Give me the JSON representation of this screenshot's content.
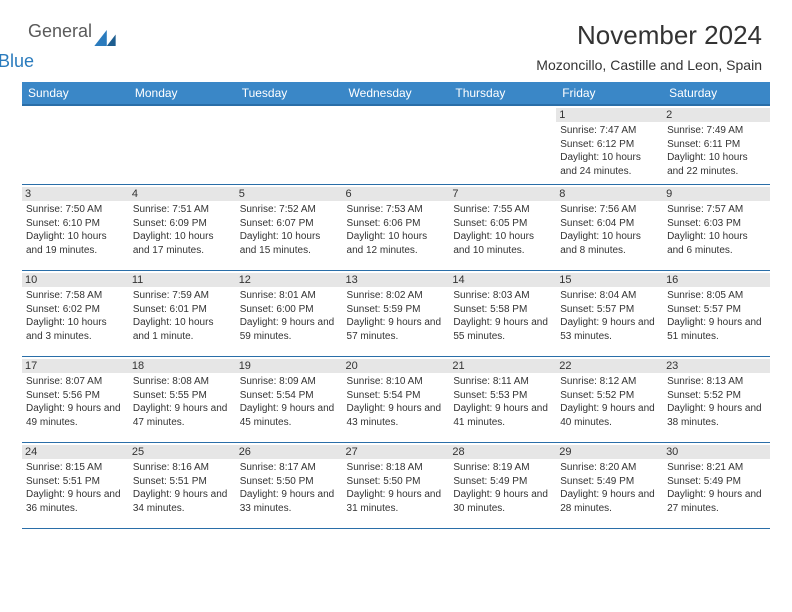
{
  "brand": {
    "word1": "General",
    "word2": "Blue",
    "color1": "#5a5a5a",
    "color2": "#2a7bbd"
  },
  "header": {
    "title": "November 2024",
    "location": "Mozoncillo, Castille and Leon, Spain"
  },
  "style": {
    "header_bg": "#3a87c7",
    "header_border": "#2a6ea8",
    "daynum_bg": "#e6e6e6",
    "text_color": "#333333",
    "background": "#ffffff",
    "title_fontsize": 26,
    "subtitle_fontsize": 14,
    "dayheader_fontsize": 12,
    "cell_fontsize": 10
  },
  "days_of_week": [
    "Sunday",
    "Monday",
    "Tuesday",
    "Wednesday",
    "Thursday",
    "Friday",
    "Saturday"
  ],
  "weeks": [
    [
      {
        "blank": true
      },
      {
        "blank": true
      },
      {
        "blank": true
      },
      {
        "blank": true
      },
      {
        "blank": true
      },
      {
        "n": "1",
        "sunrise": "Sunrise: 7:47 AM",
        "sunset": "Sunset: 6:12 PM",
        "daylight": "Daylight: 10 hours and 24 minutes."
      },
      {
        "n": "2",
        "sunrise": "Sunrise: 7:49 AM",
        "sunset": "Sunset: 6:11 PM",
        "daylight": "Daylight: 10 hours and 22 minutes."
      }
    ],
    [
      {
        "n": "3",
        "sunrise": "Sunrise: 7:50 AM",
        "sunset": "Sunset: 6:10 PM",
        "daylight": "Daylight: 10 hours and 19 minutes."
      },
      {
        "n": "4",
        "sunrise": "Sunrise: 7:51 AM",
        "sunset": "Sunset: 6:09 PM",
        "daylight": "Daylight: 10 hours and 17 minutes."
      },
      {
        "n": "5",
        "sunrise": "Sunrise: 7:52 AM",
        "sunset": "Sunset: 6:07 PM",
        "daylight": "Daylight: 10 hours and 15 minutes."
      },
      {
        "n": "6",
        "sunrise": "Sunrise: 7:53 AM",
        "sunset": "Sunset: 6:06 PM",
        "daylight": "Daylight: 10 hours and 12 minutes."
      },
      {
        "n": "7",
        "sunrise": "Sunrise: 7:55 AM",
        "sunset": "Sunset: 6:05 PM",
        "daylight": "Daylight: 10 hours and 10 minutes."
      },
      {
        "n": "8",
        "sunrise": "Sunrise: 7:56 AM",
        "sunset": "Sunset: 6:04 PM",
        "daylight": "Daylight: 10 hours and 8 minutes."
      },
      {
        "n": "9",
        "sunrise": "Sunrise: 7:57 AM",
        "sunset": "Sunset: 6:03 PM",
        "daylight": "Daylight: 10 hours and 6 minutes."
      }
    ],
    [
      {
        "n": "10",
        "sunrise": "Sunrise: 7:58 AM",
        "sunset": "Sunset: 6:02 PM",
        "daylight": "Daylight: 10 hours and 3 minutes."
      },
      {
        "n": "11",
        "sunrise": "Sunrise: 7:59 AM",
        "sunset": "Sunset: 6:01 PM",
        "daylight": "Daylight: 10 hours and 1 minute."
      },
      {
        "n": "12",
        "sunrise": "Sunrise: 8:01 AM",
        "sunset": "Sunset: 6:00 PM",
        "daylight": "Daylight: 9 hours and 59 minutes."
      },
      {
        "n": "13",
        "sunrise": "Sunrise: 8:02 AM",
        "sunset": "Sunset: 5:59 PM",
        "daylight": "Daylight: 9 hours and 57 minutes."
      },
      {
        "n": "14",
        "sunrise": "Sunrise: 8:03 AM",
        "sunset": "Sunset: 5:58 PM",
        "daylight": "Daylight: 9 hours and 55 minutes."
      },
      {
        "n": "15",
        "sunrise": "Sunrise: 8:04 AM",
        "sunset": "Sunset: 5:57 PM",
        "daylight": "Daylight: 9 hours and 53 minutes."
      },
      {
        "n": "16",
        "sunrise": "Sunrise: 8:05 AM",
        "sunset": "Sunset: 5:57 PM",
        "daylight": "Daylight: 9 hours and 51 minutes."
      }
    ],
    [
      {
        "n": "17",
        "sunrise": "Sunrise: 8:07 AM",
        "sunset": "Sunset: 5:56 PM",
        "daylight": "Daylight: 9 hours and 49 minutes."
      },
      {
        "n": "18",
        "sunrise": "Sunrise: 8:08 AM",
        "sunset": "Sunset: 5:55 PM",
        "daylight": "Daylight: 9 hours and 47 minutes."
      },
      {
        "n": "19",
        "sunrise": "Sunrise: 8:09 AM",
        "sunset": "Sunset: 5:54 PM",
        "daylight": "Daylight: 9 hours and 45 minutes."
      },
      {
        "n": "20",
        "sunrise": "Sunrise: 8:10 AM",
        "sunset": "Sunset: 5:54 PM",
        "daylight": "Daylight: 9 hours and 43 minutes."
      },
      {
        "n": "21",
        "sunrise": "Sunrise: 8:11 AM",
        "sunset": "Sunset: 5:53 PM",
        "daylight": "Daylight: 9 hours and 41 minutes."
      },
      {
        "n": "22",
        "sunrise": "Sunrise: 8:12 AM",
        "sunset": "Sunset: 5:52 PM",
        "daylight": "Daylight: 9 hours and 40 minutes."
      },
      {
        "n": "23",
        "sunrise": "Sunrise: 8:13 AM",
        "sunset": "Sunset: 5:52 PM",
        "daylight": "Daylight: 9 hours and 38 minutes."
      }
    ],
    [
      {
        "n": "24",
        "sunrise": "Sunrise: 8:15 AM",
        "sunset": "Sunset: 5:51 PM",
        "daylight": "Daylight: 9 hours and 36 minutes."
      },
      {
        "n": "25",
        "sunrise": "Sunrise: 8:16 AM",
        "sunset": "Sunset: 5:51 PM",
        "daylight": "Daylight: 9 hours and 34 minutes."
      },
      {
        "n": "26",
        "sunrise": "Sunrise: 8:17 AM",
        "sunset": "Sunset: 5:50 PM",
        "daylight": "Daylight: 9 hours and 33 minutes."
      },
      {
        "n": "27",
        "sunrise": "Sunrise: 8:18 AM",
        "sunset": "Sunset: 5:50 PM",
        "daylight": "Daylight: 9 hours and 31 minutes."
      },
      {
        "n": "28",
        "sunrise": "Sunrise: 8:19 AM",
        "sunset": "Sunset: 5:49 PM",
        "daylight": "Daylight: 9 hours and 30 minutes."
      },
      {
        "n": "29",
        "sunrise": "Sunrise: 8:20 AM",
        "sunset": "Sunset: 5:49 PM",
        "daylight": "Daylight: 9 hours and 28 minutes."
      },
      {
        "n": "30",
        "sunrise": "Sunrise: 8:21 AM",
        "sunset": "Sunset: 5:49 PM",
        "daylight": "Daylight: 9 hours and 27 minutes."
      }
    ]
  ]
}
